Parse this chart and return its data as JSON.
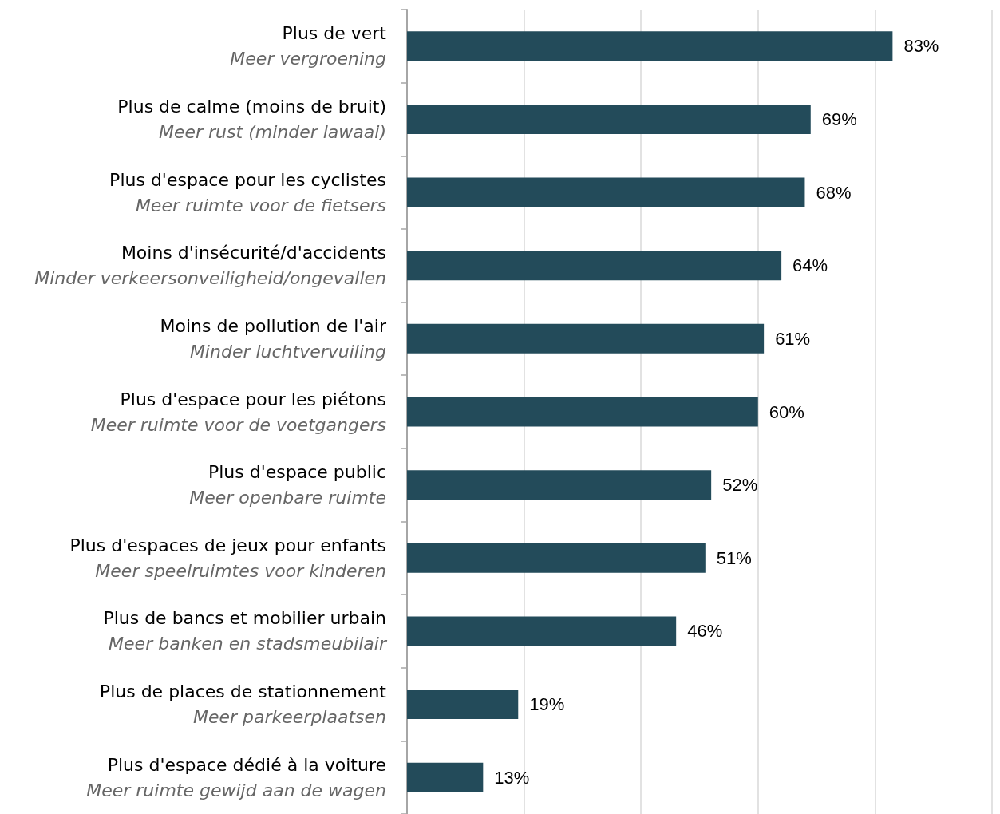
{
  "chart_data": {
    "type": "bar",
    "orientation": "horizontal",
    "categories": [
      "Plus de vert\nMeer vergroening",
      "Plus de calme (moins de bruit)\nMeer rust (minder lawaai)",
      "Plus d'espace pour les cyclistes\nMeer ruimte voor de fietsers",
      "Moins d'insécurité/d'accidents\nMinder verkeersonveiligheid/ongevallen",
      "Moins de pollution de l'air\nMinder luchtvervuiling",
      "Plus d'espace pour les piétons\nMeer ruimte voor de voetgangers",
      "Plus d'espace public\nMeer openbare ruimte",
      "Plus d'espaces de jeux pour enfants\nMeer speelruimtes voor kinderen",
      "Plus de bancs et mobilier urbain\nMeer banken en stadsmeubilair",
      "Plus de places de stationnement\nMeer parkeerplaatsen",
      "Plus d'espace dédié à la voiture\nMeer ruimte gewijd aan de wagen"
    ],
    "values": [
      83,
      69,
      68,
      64,
      61,
      60,
      52,
      51,
      46,
      19,
      13
    ],
    "value_labels": [
      "83%",
      "69%",
      "68%",
      "64%",
      "61%",
      "60%",
      "52%",
      "51%",
      "46%",
      "19%",
      "13%"
    ],
    "color": "#234b5a",
    "xlim": [
      0,
      100
    ],
    "xticks": [
      {
        "value": 0,
        "label": null
      },
      {
        "value": 20,
        "label": null
      },
      {
        "value": 40,
        "label": null
      },
      {
        "value": 60,
        "label": null
      },
      {
        "value": 80,
        "label": null
      },
      {
        "value": 100,
        "label": null
      }
    ],
    "grid": "x",
    "tick_labels": "y"
  }
}
